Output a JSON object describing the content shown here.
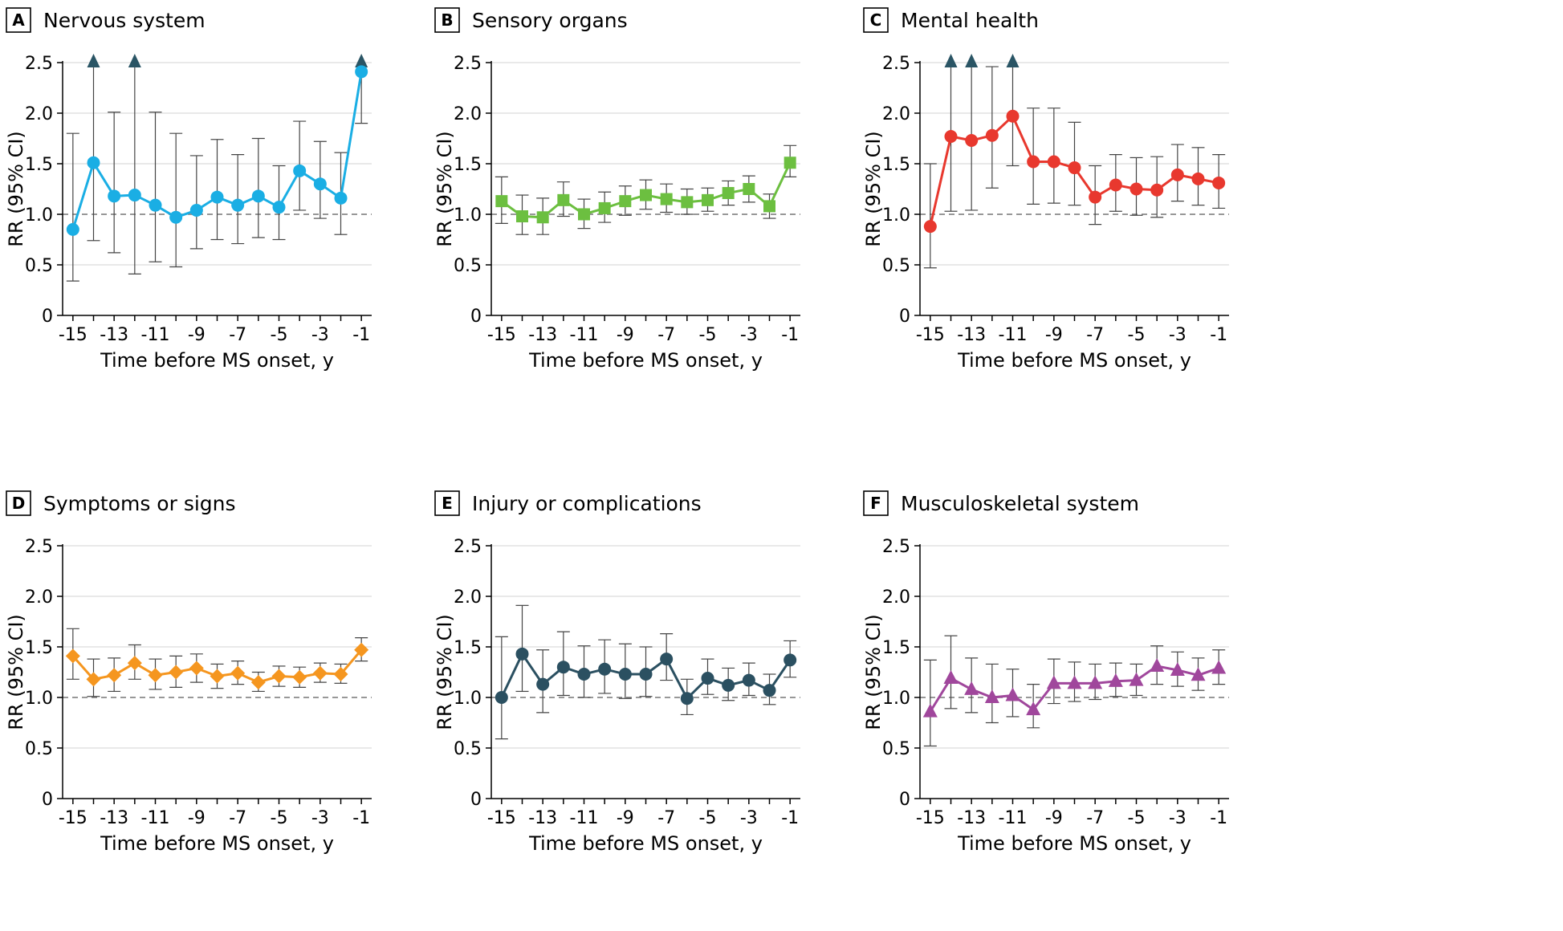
{
  "figure": {
    "x_axis_label": "Time before MS onset, y",
    "y_axis_label": "RR (95% CI)"
  },
  "chart_data": [
    {
      "type": "line",
      "panel_letter": "A",
      "title": "Nervous system",
      "color": "#1aaee4",
      "marker": "circle",
      "xlabel": "Time before MS onset, y",
      "ylabel": "RR (95% CI)",
      "xlim": [
        -15.5,
        -0.5
      ],
      "ylim": [
        0,
        2.5
      ],
      "x_ticks": [
        -15,
        -13,
        -11,
        -9,
        -7,
        -5,
        -3,
        -1
      ],
      "y_ticks": [
        0,
        0.5,
        1.0,
        1.5,
        2.0,
        2.5
      ],
      "y_tick_labels": [
        "0",
        "0.5",
        "1.0",
        "1.5",
        "2.0",
        "2.5"
      ],
      "x_tick_labels": [
        "-15",
        "-13",
        "-11",
        "-9",
        "-7",
        "-5",
        "-3",
        "-1"
      ],
      "reference_line": 1.0,
      "x": [
        -15,
        -14,
        -13,
        -12,
        -11,
        -10,
        -9,
        -8,
        -7,
        -6,
        -5,
        -4,
        -3,
        -2,
        -1
      ],
      "values": [
        0.85,
        1.51,
        1.18,
        1.19,
        1.09,
        0.97,
        1.04,
        1.17,
        1.09,
        1.18,
        1.07,
        1.43,
        1.3,
        1.16,
        2.41
      ],
      "ci_lower": [
        0.34,
        0.74,
        0.62,
        0.41,
        0.53,
        0.48,
        0.66,
        0.75,
        0.71,
        0.77,
        0.75,
        1.04,
        0.96,
        0.8,
        1.9
      ],
      "ci_upper": [
        1.8,
        2.5,
        2.01,
        2.5,
        2.01,
        1.8,
        1.58,
        1.74,
        1.59,
        1.75,
        1.48,
        1.92,
        1.72,
        1.61,
        2.5
      ],
      "upper_exceeds_axis": [
        false,
        true,
        false,
        true,
        false,
        false,
        false,
        false,
        false,
        false,
        false,
        false,
        false,
        false,
        true
      ],
      "overflow_marker_color": "#2a5565"
    },
    {
      "type": "line",
      "panel_letter": "B",
      "title": "Sensory organs",
      "color": "#6cbf40",
      "marker": "square",
      "xlabel": "Time before MS onset, y",
      "ylabel": "RR (95% CI)",
      "xlim": [
        -15.5,
        -0.5
      ],
      "ylim": [
        0,
        2.5
      ],
      "x_ticks": [
        -15,
        -13,
        -11,
        -9,
        -7,
        -5,
        -3,
        -1
      ],
      "y_ticks": [
        0,
        0.5,
        1.0,
        1.5,
        2.0,
        2.5
      ],
      "y_tick_labels": [
        "0",
        "0.5",
        "1.0",
        "1.5",
        "2.0",
        "2.5"
      ],
      "x_tick_labels": [
        "-15",
        "-13",
        "-11",
        "-9",
        "-7",
        "-5",
        "-3",
        "-1"
      ],
      "reference_line": 1.0,
      "x": [
        -15,
        -14,
        -13,
        -12,
        -11,
        -10,
        -9,
        -8,
        -7,
        -6,
        -5,
        -4,
        -3,
        -2,
        -1
      ],
      "values": [
        1.13,
        0.98,
        0.97,
        1.14,
        1.0,
        1.06,
        1.13,
        1.19,
        1.15,
        1.12,
        1.14,
        1.21,
        1.25,
        1.08,
        1.51
      ],
      "ci_lower": [
        0.91,
        0.8,
        0.8,
        0.98,
        0.86,
        0.92,
        0.99,
        1.05,
        1.02,
        1.0,
        1.03,
        1.09,
        1.12,
        0.96,
        1.37
      ],
      "ci_upper": [
        1.37,
        1.19,
        1.16,
        1.32,
        1.15,
        1.22,
        1.28,
        1.34,
        1.3,
        1.25,
        1.26,
        1.33,
        1.38,
        1.2,
        1.68
      ],
      "upper_exceeds_axis": [
        false,
        false,
        false,
        false,
        false,
        false,
        false,
        false,
        false,
        false,
        false,
        false,
        false,
        false,
        false
      ],
      "overflow_marker_color": "#2a5565"
    },
    {
      "type": "line",
      "panel_letter": "C",
      "title": "Mental health",
      "color": "#e8382e",
      "marker": "circle",
      "xlabel": "Time before MS onset, y",
      "ylabel": "RR (95% CI)",
      "xlim": [
        -15.5,
        -0.5
      ],
      "ylim": [
        0,
        2.5
      ],
      "x_ticks": [
        -15,
        -13,
        -11,
        -9,
        -7,
        -5,
        -3,
        -1
      ],
      "y_ticks": [
        0,
        0.5,
        1.0,
        1.5,
        2.0,
        2.5
      ],
      "y_tick_labels": [
        "0",
        "0.5",
        "1.0",
        "1.5",
        "2.0",
        "2.5"
      ],
      "x_tick_labels": [
        "-15",
        "-13",
        "-11",
        "-9",
        "-7",
        "-5",
        "-3",
        "-1"
      ],
      "reference_line": 1.0,
      "x": [
        -15,
        -14,
        -13,
        -12,
        -11,
        -10,
        -9,
        -8,
        -7,
        -6,
        -5,
        -4,
        -3,
        -2,
        -1
      ],
      "values": [
        0.88,
        1.77,
        1.73,
        1.78,
        1.97,
        1.52,
        1.52,
        1.46,
        1.17,
        1.29,
        1.25,
        1.24,
        1.39,
        1.35,
        1.31
      ],
      "ci_lower": [
        0.47,
        1.03,
        1.04,
        1.26,
        1.48,
        1.1,
        1.11,
        1.09,
        0.9,
        1.03,
        0.99,
        0.97,
        1.13,
        1.09,
        1.06
      ],
      "ci_upper": [
        1.5,
        2.5,
        2.5,
        2.46,
        2.5,
        2.05,
        2.05,
        1.91,
        1.48,
        1.59,
        1.56,
        1.57,
        1.69,
        1.66,
        1.59
      ],
      "upper_exceeds_axis": [
        false,
        true,
        true,
        false,
        true,
        false,
        false,
        false,
        false,
        false,
        false,
        false,
        false,
        false,
        false
      ],
      "overflow_marker_color": "#2a5565"
    },
    {
      "type": "line",
      "panel_letter": "D",
      "title": "Symptoms or signs",
      "color": "#f5961f",
      "marker": "diamond",
      "xlabel": "Time before MS onset, y",
      "ylabel": "RR (95% CI)",
      "xlim": [
        -15.5,
        -0.5
      ],
      "ylim": [
        0,
        2.5
      ],
      "x_ticks": [
        -15,
        -13,
        -11,
        -9,
        -7,
        -5,
        -3,
        -1
      ],
      "y_ticks": [
        0,
        0.5,
        1.0,
        1.5,
        2.0,
        2.5
      ],
      "y_tick_labels": [
        "0",
        "0.5",
        "1.0",
        "1.5",
        "2.0",
        "2.5"
      ],
      "x_tick_labels": [
        "-15",
        "-13",
        "-11",
        "-9",
        "-7",
        "-5",
        "-3",
        "-1"
      ],
      "reference_line": 1.0,
      "x": [
        -15,
        -14,
        -13,
        -12,
        -11,
        -10,
        -9,
        -8,
        -7,
        -6,
        -5,
        -4,
        -3,
        -2,
        -1
      ],
      "values": [
        1.41,
        1.18,
        1.22,
        1.34,
        1.22,
        1.25,
        1.29,
        1.21,
        1.24,
        1.15,
        1.21,
        1.2,
        1.24,
        1.23,
        1.47
      ],
      "ci_lower": [
        1.18,
        1.01,
        1.06,
        1.18,
        1.08,
        1.1,
        1.15,
        1.09,
        1.13,
        1.06,
        1.11,
        1.1,
        1.15,
        1.14,
        1.36
      ],
      "ci_upper": [
        1.68,
        1.38,
        1.39,
        1.52,
        1.38,
        1.41,
        1.43,
        1.33,
        1.36,
        1.25,
        1.31,
        1.3,
        1.34,
        1.33,
        1.59
      ],
      "upper_exceeds_axis": [
        false,
        false,
        false,
        false,
        false,
        false,
        false,
        false,
        false,
        false,
        false,
        false,
        false,
        false,
        false
      ],
      "overflow_marker_color": "#2a5565"
    },
    {
      "type": "line",
      "panel_letter": "E",
      "title": "Injury or complications",
      "color": "#2b5061",
      "marker": "circle",
      "xlabel": "Time before MS onset, y",
      "ylabel": "RR (95% CI)",
      "xlim": [
        -15.5,
        -0.5
      ],
      "ylim": [
        0,
        2.5
      ],
      "x_ticks": [
        -15,
        -13,
        -11,
        -9,
        -7,
        -5,
        -3,
        -1
      ],
      "y_ticks": [
        0,
        0.5,
        1.0,
        1.5,
        2.0,
        2.5
      ],
      "y_tick_labels": [
        "0",
        "0.5",
        "1.0",
        "1.5",
        "2.0",
        "2.5"
      ],
      "x_tick_labels": [
        "-15",
        "-13",
        "-11",
        "-9",
        "-7",
        "-5",
        "-3",
        "-1"
      ],
      "reference_line": 1.0,
      "x": [
        -15,
        -14,
        -13,
        -12,
        -11,
        -10,
        -9,
        -8,
        -7,
        -6,
        -5,
        -4,
        -3,
        -2,
        -1
      ],
      "values": [
        1.0,
        1.43,
        1.13,
        1.3,
        1.23,
        1.28,
        1.23,
        1.23,
        1.38,
        0.99,
        1.19,
        1.12,
        1.17,
        1.07,
        1.37
      ],
      "ci_lower": [
        0.59,
        1.06,
        0.85,
        1.02,
        1.0,
        1.04,
        0.99,
        1.01,
        1.17,
        0.83,
        1.03,
        0.97,
        1.02,
        0.93,
        1.2
      ],
      "ci_upper": [
        1.6,
        1.91,
        1.47,
        1.65,
        1.51,
        1.57,
        1.53,
        1.5,
        1.63,
        1.18,
        1.38,
        1.29,
        1.34,
        1.23,
        1.56
      ],
      "upper_exceeds_axis": [
        false,
        false,
        false,
        false,
        false,
        false,
        false,
        false,
        false,
        false,
        false,
        false,
        false,
        false,
        false
      ],
      "overflow_marker_color": "#2a5565"
    },
    {
      "type": "line",
      "panel_letter": "F",
      "title": "Musculoskeletal system",
      "color": "#a0479c",
      "marker": "triangle",
      "xlabel": "Time before MS onset, y",
      "ylabel": "RR (95% CI)",
      "xlim": [
        -15.5,
        -0.5
      ],
      "ylim": [
        0,
        2.5
      ],
      "x_ticks": [
        -15,
        -13,
        -11,
        -9,
        -7,
        -5,
        -3,
        -1
      ],
      "y_ticks": [
        0,
        0.5,
        1.0,
        1.5,
        2.0,
        2.5
      ],
      "y_tick_labels": [
        "0",
        "0.5",
        "1.0",
        "1.5",
        "2.0",
        "2.5"
      ],
      "x_tick_labels": [
        "-15",
        "-13",
        "-11",
        "-9",
        "-7",
        "-5",
        "-3",
        "-1"
      ],
      "reference_line": 1.0,
      "x": [
        -15,
        -14,
        -13,
        -12,
        -11,
        -10,
        -9,
        -8,
        -7,
        -6,
        -5,
        -4,
        -3,
        -2,
        -1
      ],
      "values": [
        0.86,
        1.19,
        1.08,
        1.0,
        1.02,
        0.88,
        1.14,
        1.14,
        1.14,
        1.16,
        1.17,
        1.31,
        1.27,
        1.22,
        1.29
      ],
      "ci_lower": [
        0.52,
        0.89,
        0.85,
        0.75,
        0.81,
        0.7,
        0.94,
        0.96,
        0.98,
        1.01,
        1.02,
        1.13,
        1.11,
        1.07,
        1.13
      ],
      "ci_upper": [
        1.37,
        1.61,
        1.39,
        1.33,
        1.28,
        1.13,
        1.38,
        1.35,
        1.33,
        1.34,
        1.33,
        1.51,
        1.45,
        1.39,
        1.47
      ],
      "upper_exceeds_axis": [
        false,
        false,
        false,
        false,
        false,
        false,
        false,
        false,
        false,
        false,
        false,
        false,
        false,
        false,
        false
      ],
      "overflow_marker_color": "#2a5565"
    }
  ]
}
